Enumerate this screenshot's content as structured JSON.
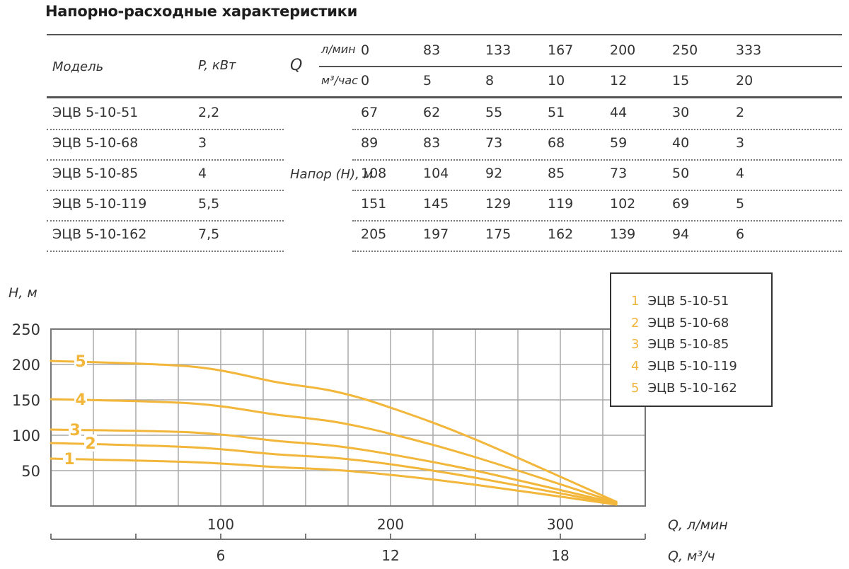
{
  "page": {
    "title": "Напорно-расходные характеристики"
  },
  "table": {
    "headers": {
      "model": "Модель",
      "power": "P, кВт",
      "q_symbol": "Q",
      "q_unit_lmin": "л/мин",
      "q_unit_m3h": "м³/час",
      "head_label": "Напор (H), м"
    },
    "q_lmin": [
      "0",
      "83",
      "133",
      "167",
      "200",
      "250",
      "333"
    ],
    "q_m3h": [
      "0",
      "5",
      "8",
      "10",
      "12",
      "15",
      "20"
    ],
    "rows": [
      {
        "model": "ЭЦВ 5-10-51",
        "power": "2,2",
        "head": [
          "67",
          "62",
          "55",
          "51",
          "44",
          "30",
          "2"
        ]
      },
      {
        "model": "ЭЦВ 5-10-68",
        "power": "3",
        "head": [
          "89",
          "83",
          "73",
          "68",
          "59",
          "40",
          "3"
        ]
      },
      {
        "model": "ЭЦВ 5-10-85",
        "power": "4",
        "head": [
          "108",
          "104",
          "92",
          "85",
          "73",
          "50",
          "4"
        ]
      },
      {
        "model": "ЭЦВ 5-10-119",
        "power": "5,5",
        "head": [
          "151",
          "145",
          "129",
          "119",
          "102",
          "69",
          "5"
        ]
      },
      {
        "model": "ЭЦВ 5-10-162",
        "power": "7,5",
        "head": [
          "205",
          "197",
          "175",
          "162",
          "139",
          "94",
          "6"
        ]
      }
    ]
  },
  "chart": {
    "y_axis_label": "H, м",
    "x_axis_label_1": "Q, л/мин",
    "x_axis_label_2": "Q, м³/ч",
    "y_ticks": [
      "250",
      "200",
      "150",
      "100",
      "50"
    ],
    "x1_ticks": [
      "100",
      "200",
      "300"
    ],
    "x2_ticks": [
      "6",
      "12",
      "18"
    ],
    "curve_color": "#f2b63a",
    "grid_color": "#a8a8a8",
    "legend": [
      {
        "num": "1",
        "label": "ЭЦВ 5-10-51"
      },
      {
        "num": "2",
        "label": "ЭЦВ 5-10-68"
      },
      {
        "num": "3",
        "label": "ЭЦВ 5-10-85"
      },
      {
        "num": "4",
        "label": "ЭЦВ 5-10-119"
      },
      {
        "num": "5",
        "label": "ЭЦВ 5-10-162"
      }
    ]
  },
  "chart_data": {
    "type": "line",
    "title": "Напорно-расходные характеристики",
    "xlabel": "Q, л/мин",
    "xlabel_secondary": "Q, м³/ч",
    "ylabel": "H, м",
    "x": [
      0,
      83,
      133,
      167,
      200,
      250,
      333
    ],
    "x_secondary": [
      0,
      5,
      8,
      10,
      12,
      15,
      20
    ],
    "xlim": [
      0,
      350
    ],
    "ylim": [
      0,
      250
    ],
    "x_ticks": [
      100,
      200,
      300
    ],
    "x_secondary_ticks": [
      6,
      12,
      18
    ],
    "y_ticks": [
      50,
      100,
      150,
      200,
      250
    ],
    "grid": true,
    "legend_position": "upper right",
    "series": [
      {
        "name": "1 ЭЦВ 5-10-51",
        "values": [
          67,
          62,
          55,
          51,
          44,
          30,
          2
        ]
      },
      {
        "name": "2 ЭЦВ 5-10-68",
        "values": [
          89,
          83,
          73,
          68,
          59,
          40,
          3
        ]
      },
      {
        "name": "3 ЭЦВ 5-10-85",
        "values": [
          108,
          104,
          92,
          85,
          73,
          50,
          4
        ]
      },
      {
        "name": "4 ЭЦВ 5-10-119",
        "values": [
          151,
          145,
          129,
          119,
          102,
          69,
          5
        ]
      },
      {
        "name": "5 ЭЦВ 5-10-162",
        "values": [
          205,
          197,
          175,
          162,
          139,
          94,
          6
        ]
      }
    ]
  }
}
